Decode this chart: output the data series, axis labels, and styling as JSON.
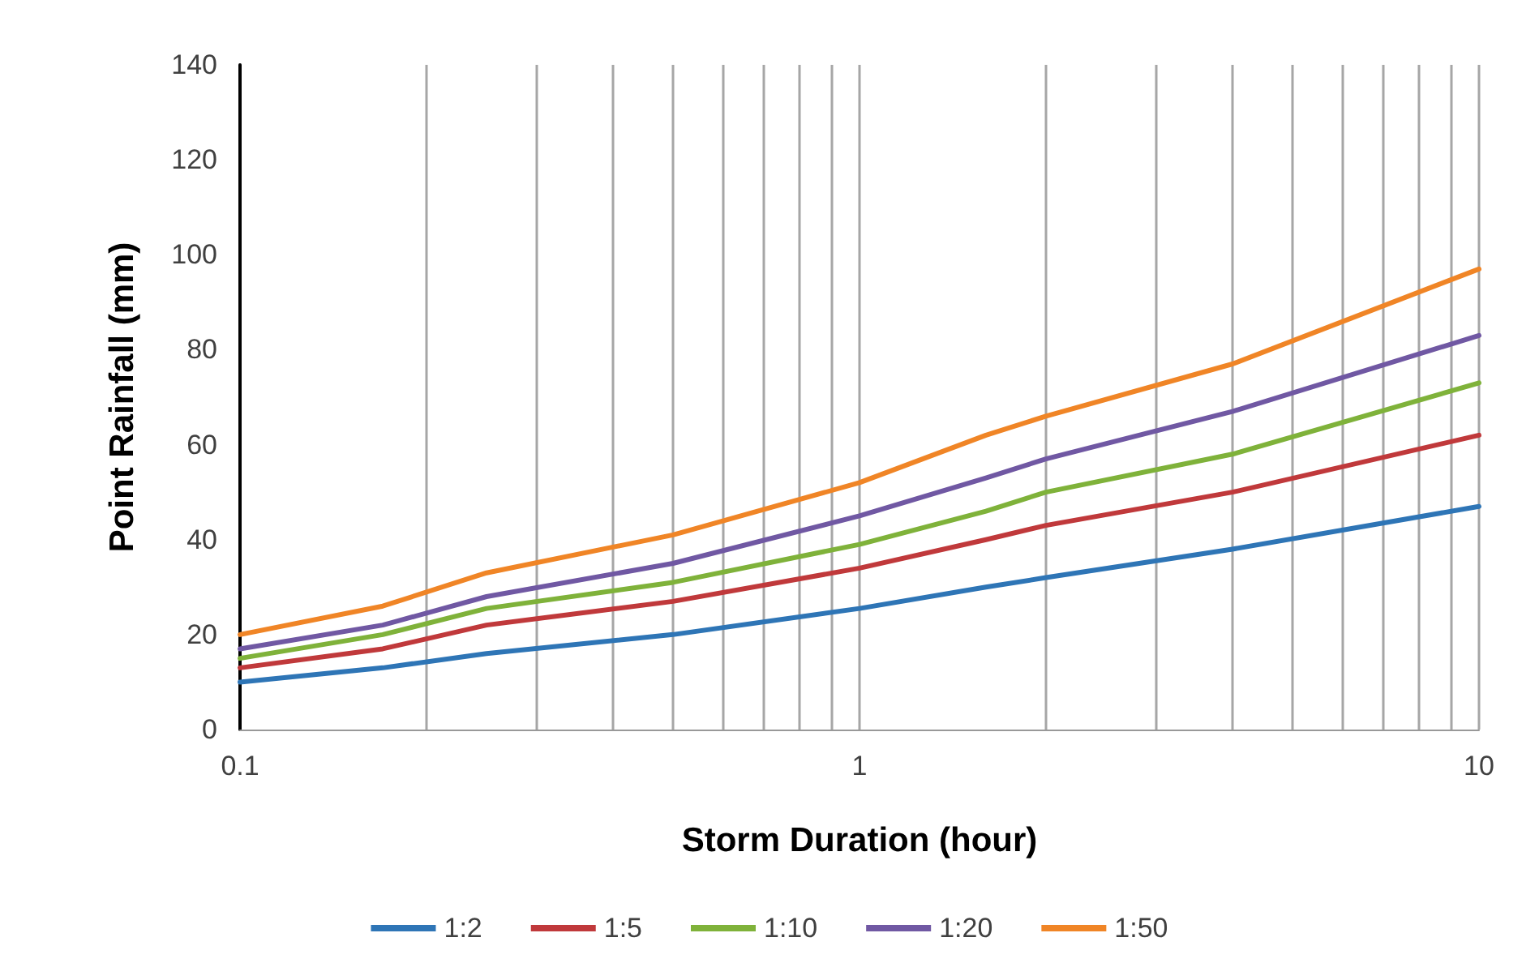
{
  "chart_data": {
    "type": "line",
    "xlabel": "Storm Duration (hour)",
    "ylabel": "Point Rainfall (mm)",
    "x": [
      0.1,
      0.17,
      0.25,
      0.5,
      1,
      1.6,
      2,
      4,
      10
    ],
    "series": [
      {
        "name": "1:2",
        "color": "#2e75b6",
        "values": [
          10,
          13,
          16,
          20,
          25.5,
          30,
          32,
          38,
          47
        ]
      },
      {
        "name": "1:5",
        "color": "#c0393b",
        "values": [
          13,
          17,
          22,
          27,
          34,
          40,
          43,
          50,
          62
        ]
      },
      {
        "name": "1:10",
        "color": "#7fb23a",
        "values": [
          15,
          20,
          25.5,
          31,
          39,
          46,
          50,
          58,
          73
        ]
      },
      {
        "name": "1:20",
        "color": "#7058a3",
        "values": [
          17,
          22,
          28,
          35,
          45,
          53,
          57,
          67,
          83
        ]
      },
      {
        "name": "1:50",
        "color": "#f08526",
        "values": [
          20,
          26,
          33,
          41,
          52,
          62,
          66,
          77,
          97
        ]
      }
    ],
    "log": "x",
    "xlim": [
      0.1,
      10
    ],
    "xticks": [
      0.1,
      {
        "value": 0.2,
        "label": null
      },
      {
        "value": 0.3,
        "label": null
      },
      {
        "value": 0.4,
        "label": null
      },
      {
        "value": 0.5,
        "label": null
      },
      {
        "value": 0.6,
        "label": null
      },
      {
        "value": 0.7,
        "label": null
      },
      {
        "value": 0.8,
        "label": null
      },
      {
        "value": 0.9,
        "label": null
      },
      1,
      {
        "value": 2,
        "label": null
      },
      {
        "value": 3,
        "label": null
      },
      {
        "value": 4,
        "label": null
      },
      {
        "value": 5,
        "label": null
      },
      {
        "value": 6,
        "label": null
      },
      {
        "value": 7,
        "label": null
      },
      {
        "value": 8,
        "label": null
      },
      {
        "value": 9,
        "label": null
      },
      10
    ],
    "ylim": [
      0,
      140
    ],
    "yticks": [
      0,
      20,
      40,
      60,
      80,
      100,
      120,
      140
    ],
    "grid": "x",
    "legend": "bottom",
    "marker": "none",
    "line_style": "solid"
  }
}
